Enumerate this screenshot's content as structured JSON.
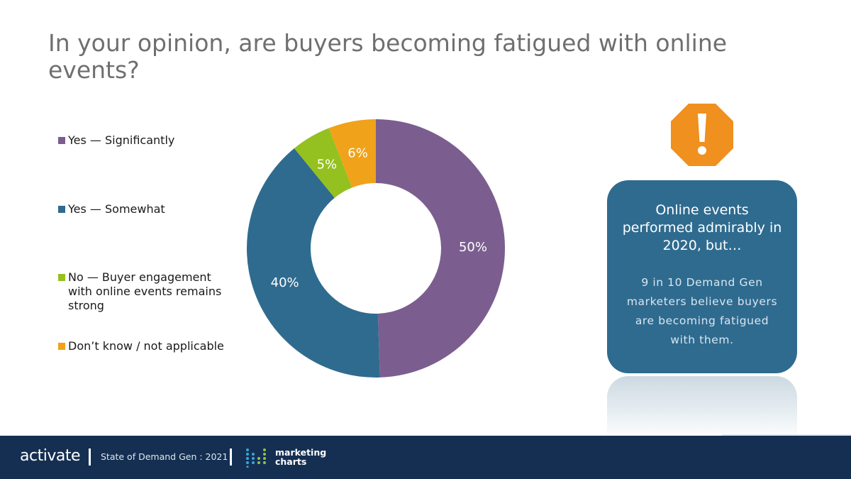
{
  "title": "In your opinion, are buyers becoming fatigued with online events?",
  "chart_data": {
    "type": "pie",
    "donut": true,
    "categories": [
      "Yes — Significantly",
      "Yes — Somewhat",
      "No — Buyer engagement with online events remains strong",
      "Don’t know / not applicable"
    ],
    "values": [
      50,
      40,
      5,
      6
    ],
    "value_labels": [
      "50%",
      "40%",
      "5%",
      "6%"
    ],
    "colors": [
      "#7b5e8f",
      "#2f6b8f",
      "#94c11f",
      "#f0a21a"
    ],
    "legend_position": "left"
  },
  "callout": {
    "headline": "Online events performed admirably in 2020, but…",
    "body": "9 in 10 Demand Gen marketers believe buyers are becoming fatigued with them."
  },
  "icons": {
    "alert": "exclamation-octagon-icon"
  },
  "footer": {
    "brand": "activate",
    "report": "State of Demand Gen : 2021",
    "partner_line1": "marketing",
    "partner_line2": "charts"
  }
}
